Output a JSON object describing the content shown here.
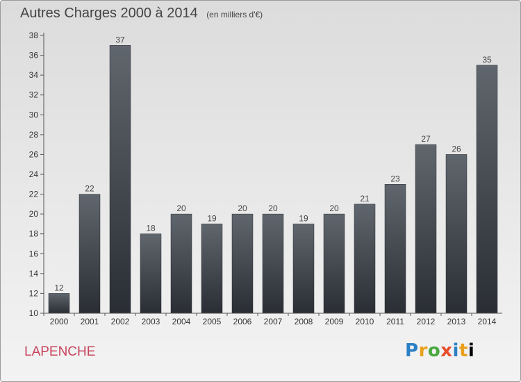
{
  "title": "Autres Charges 2000 à 2014",
  "subtitle": "(en milliers d'€)",
  "location": "LAPENCHE",
  "logo": {
    "letters": [
      "P",
      "r",
      "o",
      "x",
      "i",
      "t",
      "i"
    ]
  },
  "chart_data": {
    "type": "bar",
    "categories": [
      "2000",
      "2001",
      "2002",
      "2003",
      "2004",
      "2005",
      "2006",
      "2007",
      "2008",
      "2009",
      "2010",
      "2011",
      "2012",
      "2013",
      "2014"
    ],
    "values": [
      12,
      22,
      37,
      18,
      20,
      19,
      20,
      20,
      19,
      20,
      21,
      23,
      27,
      26,
      35
    ],
    "ylim": [
      10,
      38
    ],
    "yticks": [
      10,
      12,
      14,
      16,
      18,
      20,
      22,
      24,
      26,
      28,
      30,
      32,
      34,
      36,
      38
    ],
    "title": "Autres Charges 2000 à 2014",
    "xlabel": "",
    "ylabel": "",
    "grid": false,
    "bar_color": "#3b3f45"
  }
}
